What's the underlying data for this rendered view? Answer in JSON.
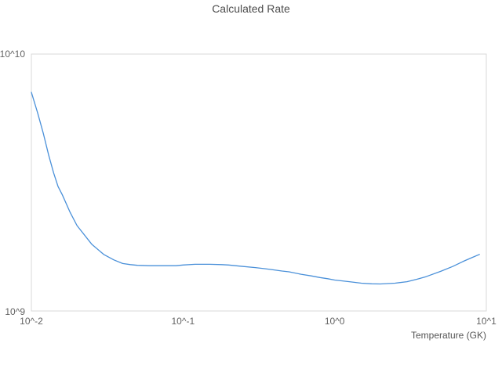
{
  "chart_data": {
    "type": "line",
    "title": "Calculated Rate",
    "xlabel": "Temperature (GK)",
    "ylabel": "",
    "x_scale": "log",
    "y_scale": "log",
    "xlim": [
      0.01,
      10
    ],
    "ylim": [
      1000000000.0,
      10000000000.0
    ],
    "grid": false,
    "legend": "none",
    "plot_border_color": "#d9d9d9",
    "line_color": "#4a90d9",
    "title_color": "#4c4c4c",
    "tick_color": "#636363",
    "x_tick_labels": [
      "10^-2",
      "10^-1",
      "10^0",
      "10^1"
    ],
    "x_tick_values": [
      0.01,
      0.1,
      1,
      10
    ],
    "y_tick_labels": [
      "10^9",
      "10^10"
    ],
    "y_tick_values": [
      1000000000.0,
      10000000000.0
    ],
    "series": [
      {
        "name": "calculated-rate",
        "x": [
          0.01,
          0.011,
          0.012,
          0.013,
          0.014,
          0.015,
          0.016,
          0.018,
          0.02,
          0.025,
          0.03,
          0.035,
          0.04,
          0.045,
          0.05,
          0.06,
          0.07,
          0.08,
          0.09,
          0.1,
          0.12,
          0.15,
          0.18,
          0.2,
          0.25,
          0.3,
          0.35,
          0.4,
          0.45,
          0.5,
          0.6,
          0.7,
          0.8,
          0.9,
          1.0,
          1.25,
          1.5,
          1.75,
          2.0,
          2.5,
          3.0,
          3.5,
          4.0,
          5.0,
          6.0,
          7.0,
          8.0,
          9.0
        ],
        "y": [
          7100000000.0,
          5900000000.0,
          4900000000.0,
          4050000000.0,
          3450000000.0,
          3050000000.0,
          2830000000.0,
          2420000000.0,
          2150000000.0,
          1820000000.0,
          1660000000.0,
          1580000000.0,
          1530000000.0,
          1515000000.0,
          1506000000.0,
          1500000000.0,
          1500000000.0,
          1500000000.0,
          1500000000.0,
          1510000000.0,
          1520000000.0,
          1520000000.0,
          1515000000.0,
          1510000000.0,
          1490000000.0,
          1475000000.0,
          1460000000.0,
          1445000000.0,
          1430000000.0,
          1420000000.0,
          1390000000.0,
          1370000000.0,
          1350000000.0,
          1335000000.0,
          1320000000.0,
          1300000000.0,
          1283000000.0,
          1276000000.0,
          1274000000.0,
          1283000000.0,
          1300000000.0,
          1330000000.0,
          1360000000.0,
          1426000000.0,
          1490000000.0,
          1557000000.0,
          1612000000.0,
          1660000000.0
        ]
      }
    ]
  }
}
